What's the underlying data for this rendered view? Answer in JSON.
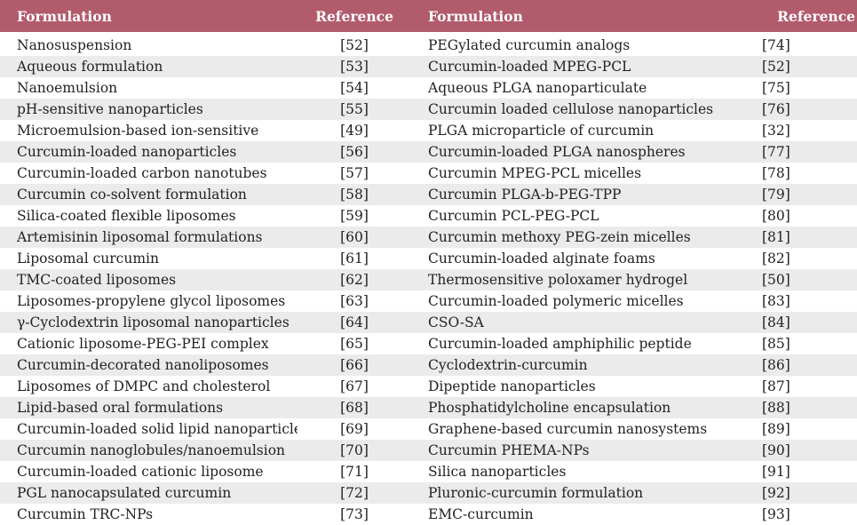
{
  "table": {
    "headers": [
      "Formulation",
      "Reference",
      "Formulation",
      "Reference"
    ],
    "rows": [
      [
        "Nanosuspension",
        "[52]",
        "PEGylated curcumin analogs",
        "[74]"
      ],
      [
        "Aqueous formulation",
        "[53]",
        "Curcumin-loaded MPEG-PCL",
        "[52]"
      ],
      [
        "Nanoemulsion",
        "[54]",
        "Aqueous PLGA nanoparticulate",
        "[75]"
      ],
      [
        "pH-sensitive nanoparticles",
        "[55]",
        "Curcumin loaded cellulose nanoparticles",
        "[76]"
      ],
      [
        "Microemulsion-based ion-sensitive",
        "[49]",
        "PLGA microparticle of curcumin",
        "[32]"
      ],
      [
        "Curcumin-loaded nanoparticles",
        "[56]",
        "Curcumin-loaded PLGA nanospheres",
        "[77]"
      ],
      [
        "Curcumin-loaded carbon nanotubes",
        "[57]",
        "Curcumin MPEG-PCL micelles",
        "[78]"
      ],
      [
        "Curcumin co-solvent formulation",
        "[58]",
        "Curcumin PLGA-b-PEG-TPP",
        "[79]"
      ],
      [
        "Silica-coated flexible liposomes",
        "[59]",
        "Curcumin PCL-PEG-PCL",
        "[80]"
      ],
      [
        "Artemisinin liposomal formulations",
        "[60]",
        "Curcumin methoxy PEG-zein micelles",
        "[81]"
      ],
      [
        "Liposomal curcumin",
        "[61]",
        "Curcumin-loaded alginate foams",
        "[82]"
      ],
      [
        "TMC-coated liposomes",
        "[62]",
        "Thermosensitive poloxamer hydrogel",
        "[50]"
      ],
      [
        "Liposomes-propylene glycol liposomes",
        "[63]",
        "Curcumin-loaded polymeric micelles",
        "[83]"
      ],
      [
        "γ-Cyclodextrin liposomal nanoparticles",
        "[64]",
        "CSO-SA",
        "[84]"
      ],
      [
        "Cationic liposome-PEG-PEI complex",
        "[65]",
        "Curcumin-loaded amphiphilic peptide",
        "[85]"
      ],
      [
        "Curcumin-decorated nanoliposomes",
        "[66]",
        "Cyclodextrin-curcumin",
        "[86]"
      ],
      [
        "Liposomes of DMPC and cholesterol",
        "[67]",
        "Dipeptide nanoparticles",
        "[87]"
      ],
      [
        "Lipid-based oral formulations",
        "[68]",
        "Phosphatidylcholine encapsulation",
        "[88]"
      ],
      [
        "Curcumin-loaded solid lipid nanoparticles",
        "[69]",
        "Graphene-based curcumin nanosystems",
        "[89]"
      ],
      [
        "Curcumin nanoglobules/nanoemulsion",
        "[70]",
        "Curcumin PHEMA-NPs",
        "[90]"
      ],
      [
        "Curcumin-loaded cationic liposome",
        "[71]",
        "Silica nanoparticles",
        "[91]"
      ],
      [
        "PGL nanocapsulated curcumin",
        "[72]",
        "Pluronic-curcumin formulation",
        "[92]"
      ],
      [
        "Curcumin TRC-NPs",
        "[73]",
        "EMC-curcumin",
        "[93]"
      ]
    ]
  }
}
